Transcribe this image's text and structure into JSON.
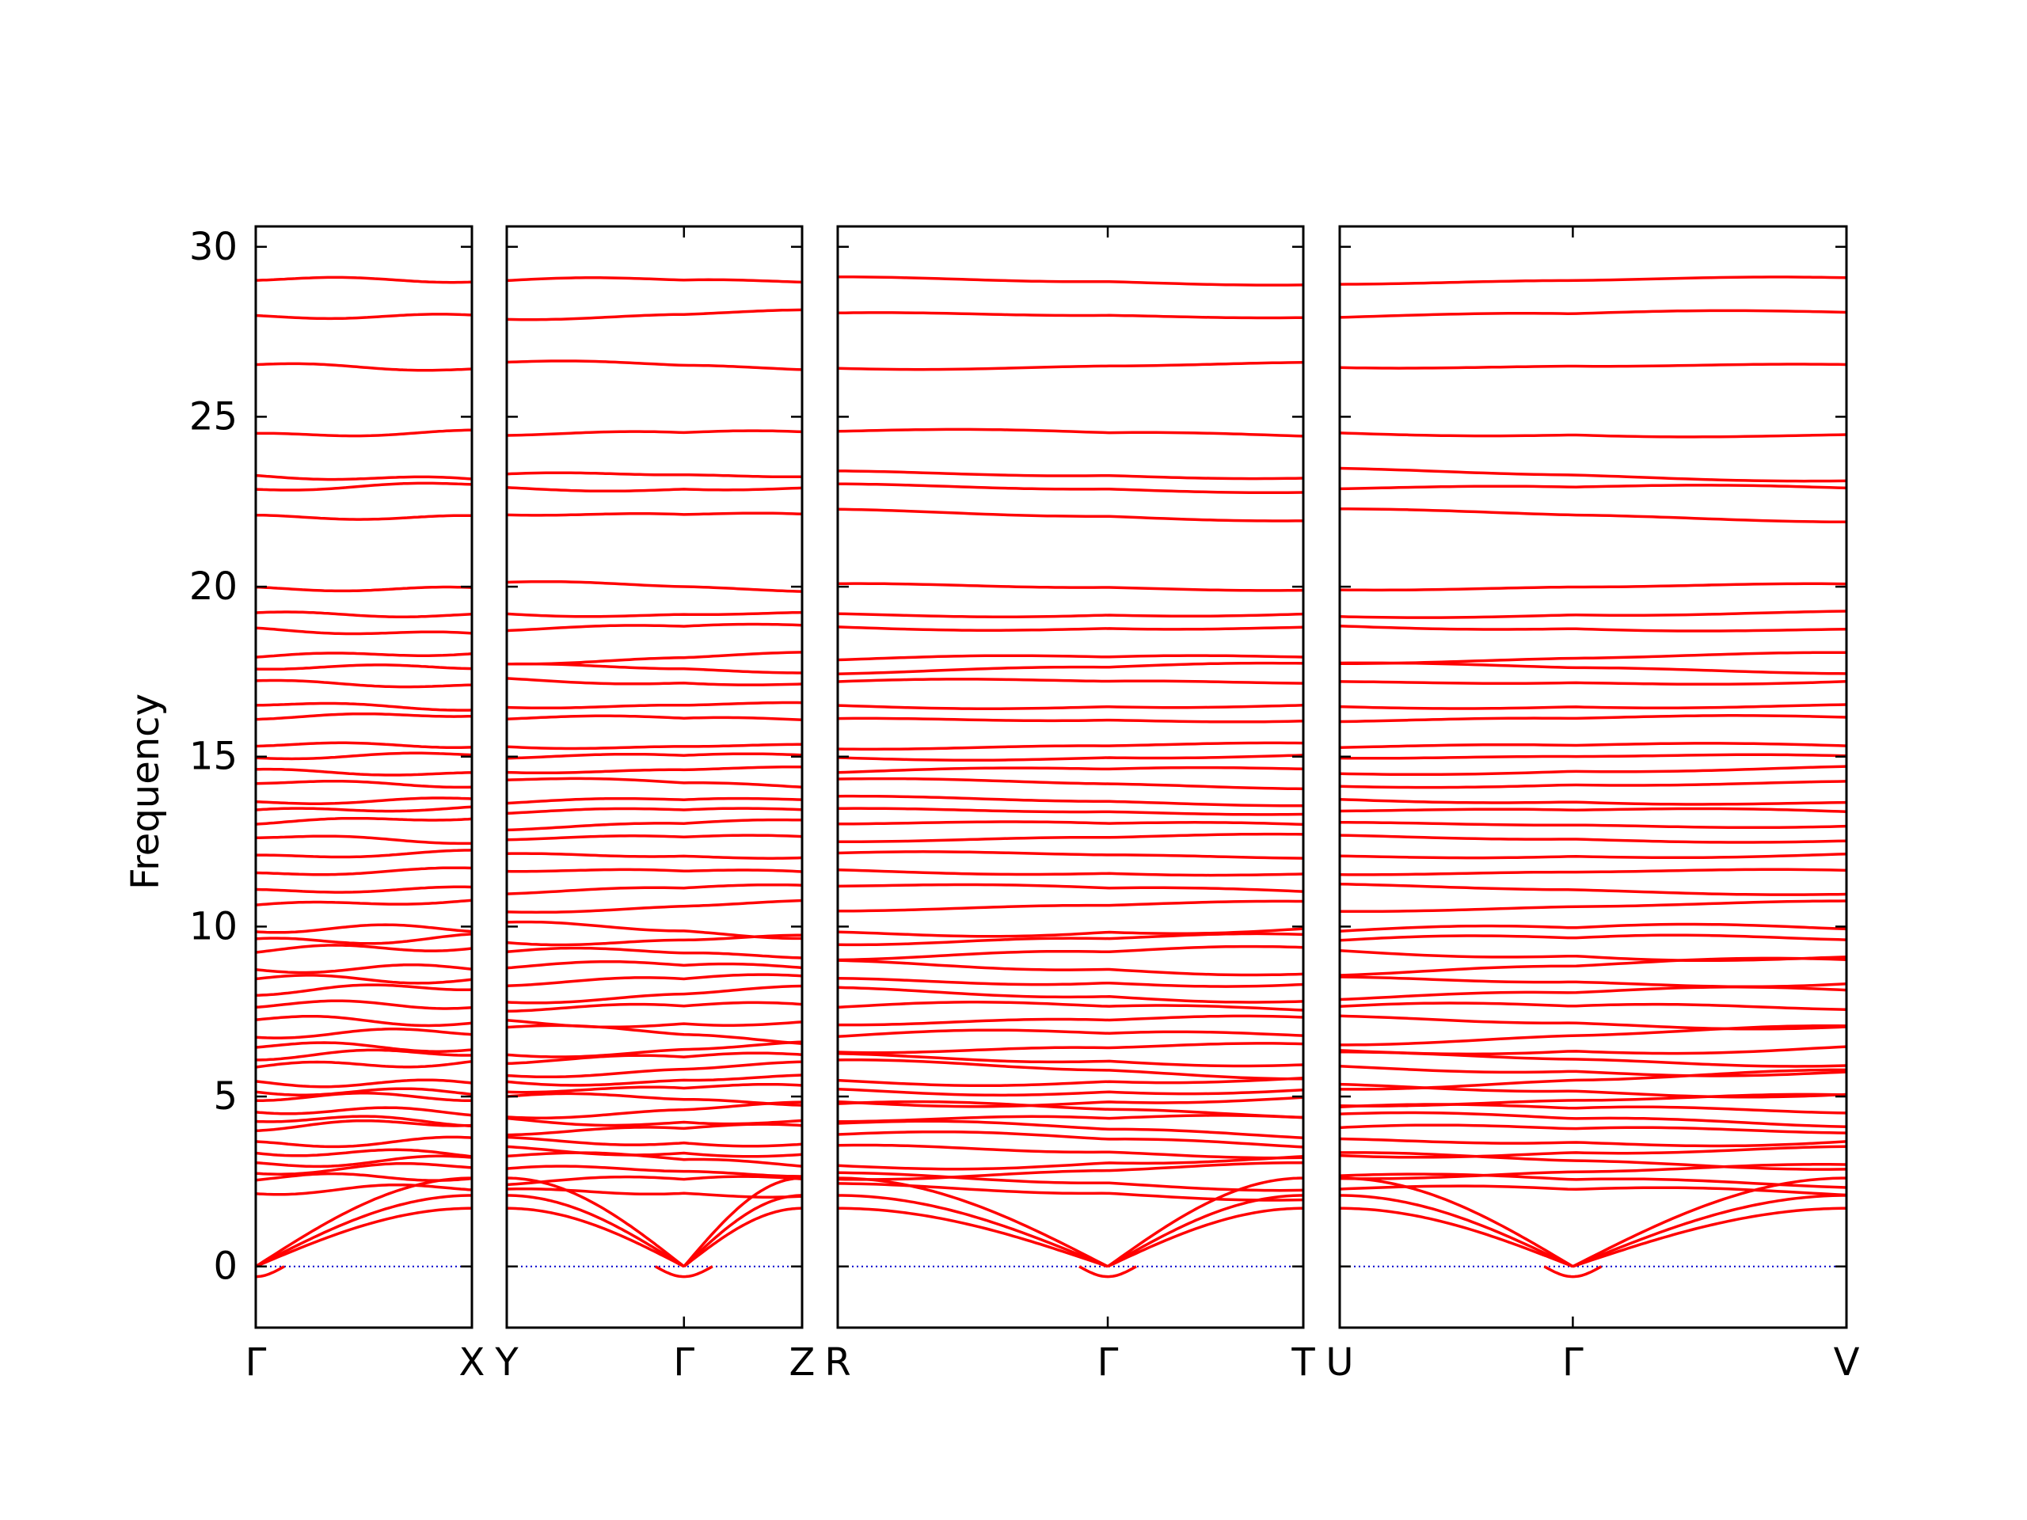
{
  "chart_data": {
    "type": "line",
    "title": "",
    "ylabel": "Frequency",
    "ylim": [
      -1.8,
      30.6
    ],
    "yticks": [
      0,
      5,
      10,
      15,
      20,
      25,
      30
    ],
    "ytick_labels": [
      "0",
      "5",
      "10",
      "15",
      "20",
      "25",
      "30"
    ],
    "grid": false,
    "legend": "none",
    "colors": {
      "bands": "#ff0000",
      "zero_line": "#0000cc",
      "axes": "#000000"
    },
    "panels": [
      {
        "x_labels": [
          "Γ",
          "X"
        ],
        "gamma_position": 0.0
      },
      {
        "x_labels": [
          "Y",
          "Γ",
          "Z"
        ],
        "gamma_position": 0.6
      },
      {
        "x_labels": [
          "R",
          "Γ",
          "T"
        ],
        "gamma_position": 0.58
      },
      {
        "x_labels": [
          "U",
          "Γ",
          "V"
        ],
        "gamma_position": 0.46
      }
    ],
    "band_levels": [
      2.2,
      2.5,
      2.8,
      3.1,
      3.4,
      3.7,
      4.0,
      4.3,
      4.6,
      4.9,
      5.2,
      5.5,
      5.8,
      6.1,
      6.4,
      6.8,
      7.2,
      7.6,
      8.0,
      8.4,
      8.8,
      9.2,
      9.6,
      9.9,
      10.6,
      11.1,
      11.6,
      12.1,
      12.6,
      13.0,
      13.4,
      13.7,
      14.2,
      14.6,
      15.0,
      15.3,
      16.1,
      16.5,
      17.2,
      17.6,
      17.9,
      18.8,
      19.2,
      20.0,
      22.1,
      22.9,
      23.3,
      24.5,
      26.5,
      28.0,
      29.0
    ],
    "acoustic_gamma_min": -0.3,
    "acoustic_zone_edge": [
      1.9,
      2.2,
      2.6
    ]
  }
}
